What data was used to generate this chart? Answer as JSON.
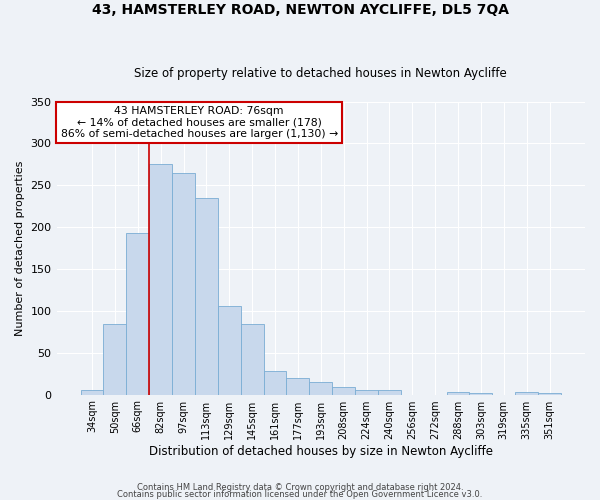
{
  "title": "43, HAMSTERLEY ROAD, NEWTON AYCLIFFE, DL5 7QA",
  "subtitle": "Size of property relative to detached houses in Newton Aycliffe",
  "xlabel": "Distribution of detached houses by size in Newton Aycliffe",
  "ylabel": "Number of detached properties",
  "categories": [
    "34sqm",
    "50sqm",
    "66sqm",
    "82sqm",
    "97sqm",
    "113sqm",
    "129sqm",
    "145sqm",
    "161sqm",
    "177sqm",
    "193sqm",
    "208sqm",
    "224sqm",
    "240sqm",
    "256sqm",
    "272sqm",
    "288sqm",
    "303sqm",
    "319sqm",
    "335sqm",
    "351sqm"
  ],
  "values": [
    6,
    84,
    193,
    275,
    265,
    235,
    106,
    84,
    28,
    20,
    15,
    9,
    6,
    5,
    0,
    0,
    3,
    2,
    0,
    3,
    2
  ],
  "bar_color": "#c8d8ec",
  "bar_edge_color": "#7aadd4",
  "bar_width": 1.0,
  "vline_x_index": 3,
  "vline_color": "#cc0000",
  "annotation_lines": [
    "43 HAMSTERLEY ROAD: 76sqm",
    "← 14% of detached houses are smaller (178)",
    "86% of semi-detached houses are larger (1,130) →"
  ],
  "annotation_box_color": "#ffffff",
  "annotation_box_edge": "#cc0000",
  "ylim": [
    0,
    350
  ],
  "yticks": [
    0,
    50,
    100,
    150,
    200,
    250,
    300,
    350
  ],
  "footer_lines": [
    "Contains HM Land Registry data © Crown copyright and database right 2024.",
    "Contains public sector information licensed under the Open Government Licence v3.0."
  ],
  "background_color": "#eef2f7",
  "plot_background": "#eef2f7",
  "grid_color": "#ffffff"
}
